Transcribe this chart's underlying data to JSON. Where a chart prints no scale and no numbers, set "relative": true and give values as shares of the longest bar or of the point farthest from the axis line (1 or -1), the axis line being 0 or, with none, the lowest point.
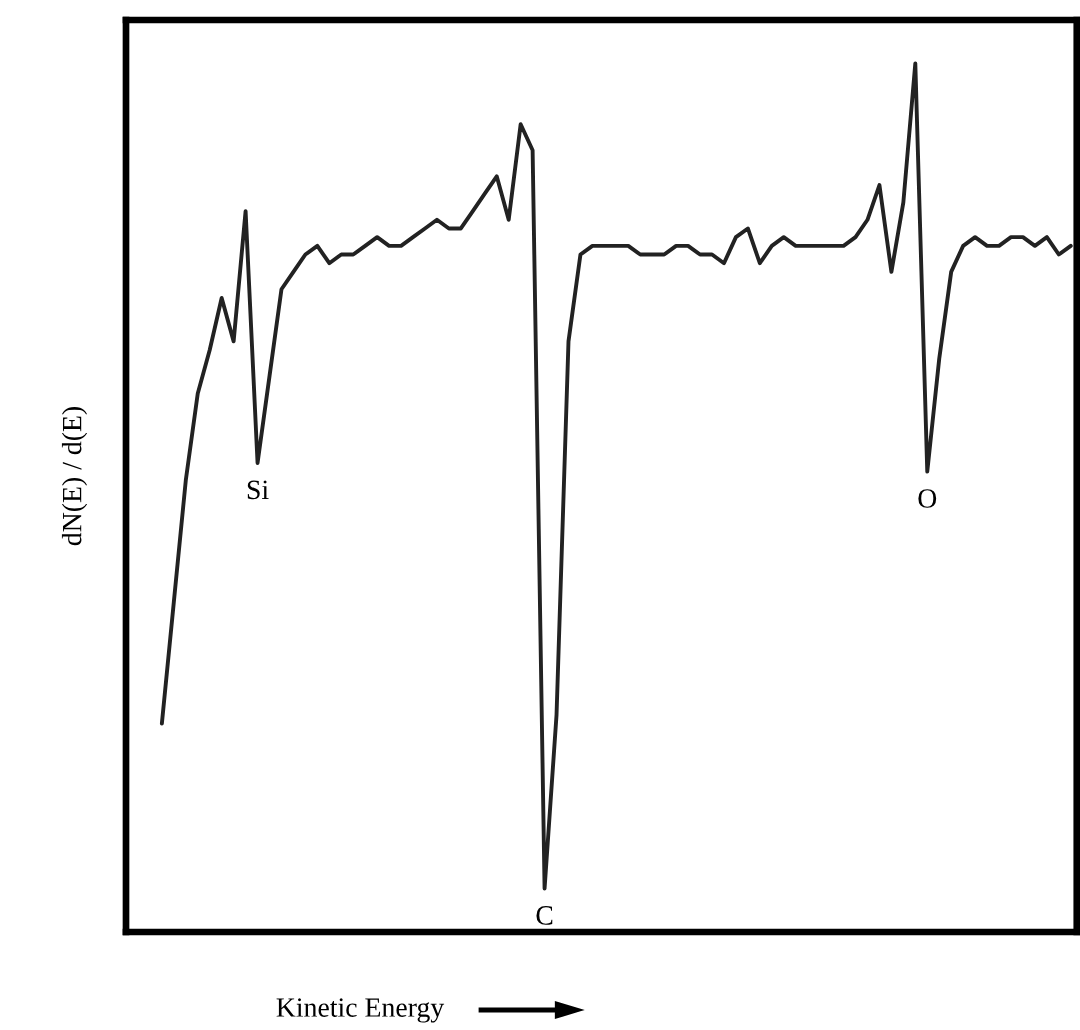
{
  "chart_data": {
    "type": "line",
    "relative": true,
    "xlabel": "Kinetic Energy",
    "ylabel": "dN(E) / d(E)",
    "legend": false,
    "annotations": [
      "Si",
      "C",
      "O"
    ],
    "categories": [
      null,
      null,
      null,
      null,
      null,
      null,
      null,
      null,
      null,
      null,
      null,
      null,
      null,
      null,
      null,
      null,
      null,
      null,
      null,
      null,
      null,
      null,
      null,
      null,
      null,
      null,
      null,
      null,
      null,
      null,
      null,
      null,
      null,
      null,
      null,
      null,
      null,
      null,
      null,
      null,
      null,
      null,
      null,
      null,
      null,
      null,
      null,
      null,
      null,
      null,
      null,
      null,
      null,
      null,
      null,
      null,
      null,
      null,
      null,
      null,
      null,
      null,
      null,
      null,
      null,
      null,
      null,
      null,
      null,
      null,
      null,
      null,
      null,
      null,
      null,
      null,
      null
    ],
    "series": [
      {
        "color": "#222222",
        "values": [
          0.24,
          0.38,
          0.52,
          0.62,
          0.67,
          0.73,
          0.68,
          0.83,
          0.54,
          0.64,
          0.74,
          0.76,
          0.78,
          0.79,
          0.77,
          0.78,
          0.78,
          0.79,
          0.8,
          0.79,
          0.79,
          0.8,
          0.81,
          0.82,
          0.81,
          0.81,
          0.83,
          0.85,
          0.87,
          0.82,
          0.93,
          0.9,
          0.05,
          0.25,
          0.68,
          0.78,
          0.79,
          0.79,
          0.79,
          0.79,
          0.78,
          0.78,
          0.78,
          0.79,
          0.79,
          0.78,
          0.78,
          0.77,
          0.8,
          0.81,
          0.77,
          0.79,
          0.8,
          0.79,
          0.79,
          0.79,
          0.79,
          0.79,
          0.8,
          0.82,
          0.86,
          0.76,
          0.84,
          1.0,
          0.53,
          0.66,
          0.76,
          0.79,
          0.8,
          0.79,
          0.79,
          0.8,
          0.8,
          0.79,
          0.8,
          0.78,
          0.79
        ]
      }
    ]
  }
}
